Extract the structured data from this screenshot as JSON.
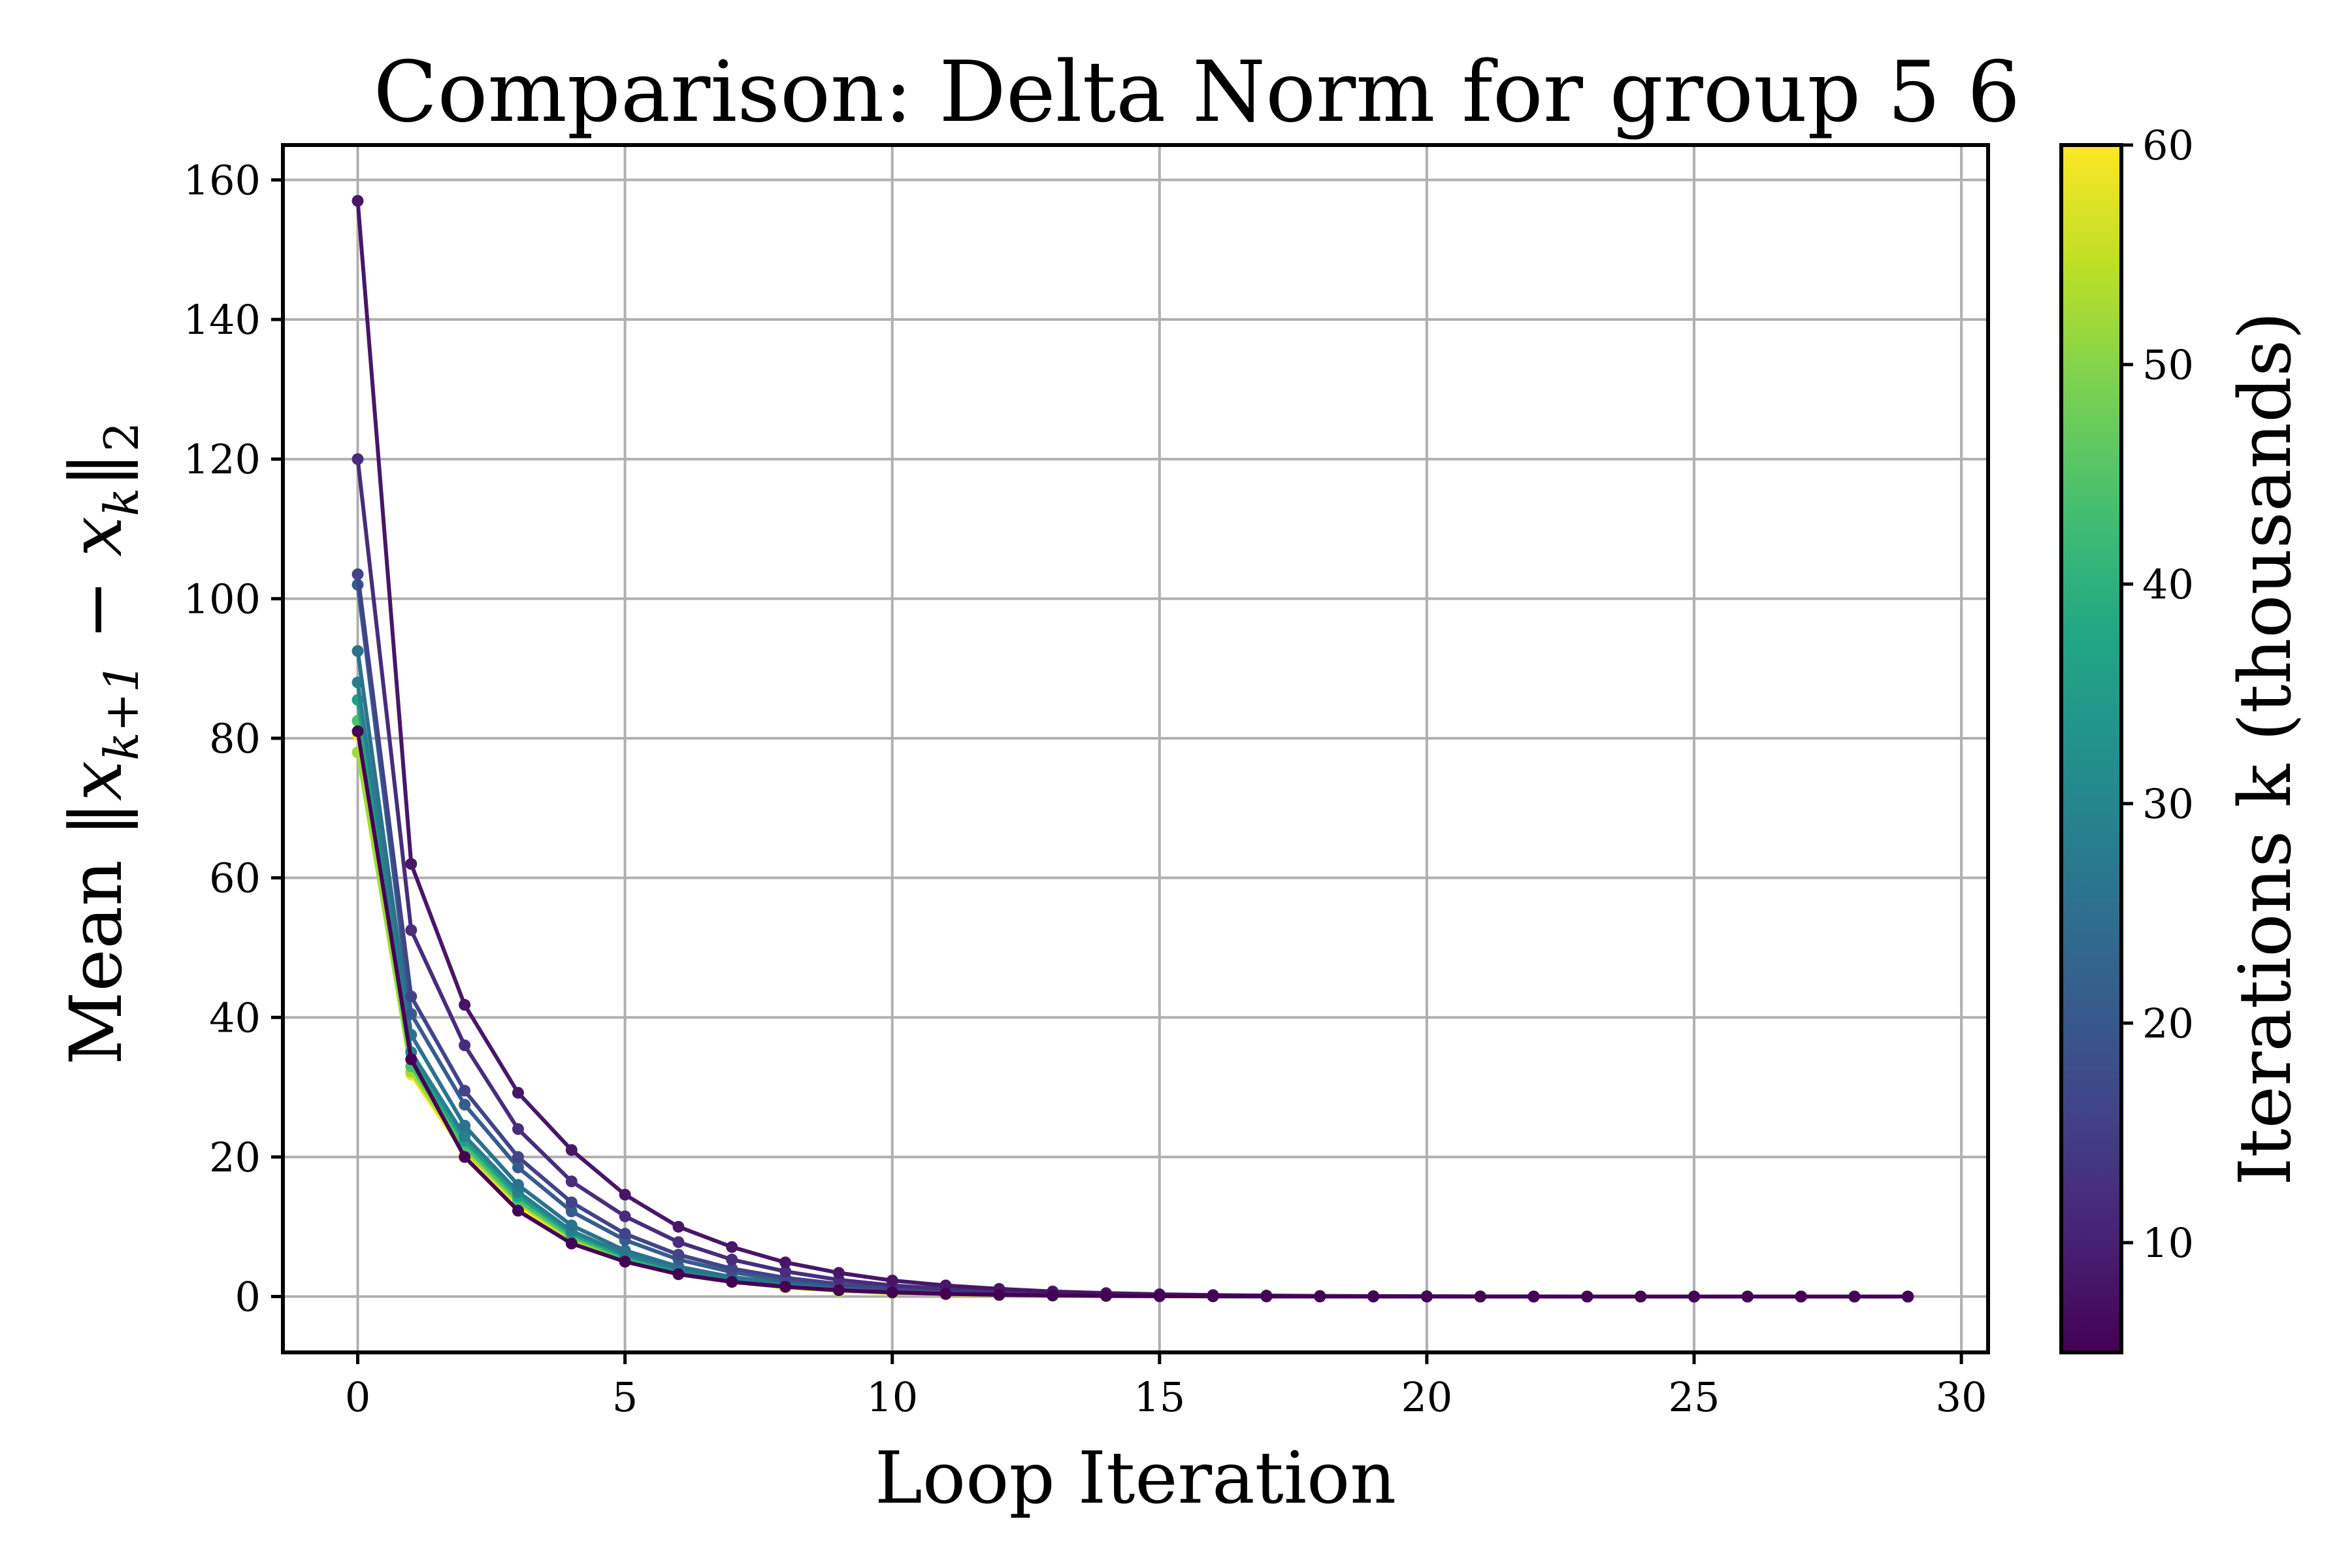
{
  "chart_data": {
    "type": "line",
    "title": "Comparison: Delta Norm for group 5 6",
    "xlabel": "Loop Iteration",
    "ylabel": "Mean ‖x_{k+1} − x_k‖₂",
    "ylabel_parts": {
      "lead": "Mean ‖",
      "x1": "x",
      "sub1": "k+1",
      "minus": " − ",
      "x2": "x",
      "sub2": "k",
      "close": "‖",
      "sub3": "2"
    },
    "xlim": [
      -1.4,
      30.5
    ],
    "ylim": [
      -8,
      165
    ],
    "xticks": [
      0,
      5,
      10,
      15,
      20,
      25,
      30
    ],
    "yticks": [
      0,
      20,
      40,
      60,
      80,
      100,
      120,
      140,
      160
    ],
    "grid": true,
    "colorbar": {
      "label": "Iterations k (thousands)",
      "colormap": "viridis",
      "range": [
        5,
        60
      ],
      "ticks": [
        10,
        20,
        30,
        40,
        50,
        60
      ]
    },
    "x": [
      0,
      1,
      2,
      3,
      4,
      5,
      6,
      7,
      8,
      9,
      10,
      11,
      12,
      13,
      14,
      15,
      16,
      17,
      18,
      19,
      20,
      21,
      22,
      23,
      24,
      25,
      26,
      27,
      28,
      29
    ],
    "series": [
      {
        "k": 60,
        "color": "#fde725",
        "values": [
          80.5,
          31.8,
          20.5,
          13.0,
          8.0,
          5.1,
          3.2,
          2.1,
          1.3,
          0.8,
          0.5,
          0.3,
          0.2,
          0.12,
          0.07,
          0.04,
          0.03,
          0.02,
          0.01,
          0.01,
          0,
          0,
          0,
          0,
          0,
          0,
          0,
          0,
          0,
          0
        ]
      },
      {
        "k": 55,
        "color": "#a0da39",
        "values": [
          78.0,
          32.2,
          21.0,
          13.4,
          8.3,
          5.3,
          3.3,
          2.2,
          1.4,
          0.9,
          0.55,
          0.35,
          0.22,
          0.14,
          0.08,
          0.05,
          0.03,
          0.02,
          0.01,
          0.01,
          0,
          0,
          0,
          0,
          0,
          0,
          0,
          0,
          0,
          0
        ]
      },
      {
        "k": 50,
        "color": "#4ac16d",
        "values": [
          82.5,
          33.0,
          21.6,
          13.8,
          8.6,
          5.5,
          3.5,
          2.3,
          1.5,
          0.95,
          0.6,
          0.38,
          0.24,
          0.15,
          0.09,
          0.06,
          0.04,
          0.02,
          0.01,
          0.01,
          0,
          0,
          0,
          0,
          0,
          0,
          0,
          0,
          0,
          0
        ]
      },
      {
        "k": 45,
        "color": "#1fa187",
        "values": [
          85.5,
          34.0,
          22.3,
          14.4,
          9.0,
          5.8,
          3.7,
          2.4,
          1.6,
          1.0,
          0.65,
          0.4,
          0.26,
          0.16,
          0.1,
          0.06,
          0.04,
          0.03,
          0.02,
          0.01,
          0,
          0,
          0,
          0,
          0,
          0,
          0,
          0,
          0,
          0
        ]
      },
      {
        "k": 40,
        "color": "#277f8e",
        "values": [
          88.0,
          35.0,
          23.0,
          15.0,
          9.4,
          6.1,
          3.9,
          2.5,
          1.7,
          1.05,
          0.7,
          0.43,
          0.28,
          0.18,
          0.11,
          0.07,
          0.05,
          0.03,
          0.02,
          0.01,
          0,
          0,
          0,
          0,
          0,
          0,
          0,
          0,
          0,
          0
        ]
      },
      {
        "k": 30,
        "color": "#2c728e",
        "values": [
          92.5,
          37.5,
          24.5,
          16.0,
          10.2,
          6.6,
          4.3,
          2.8,
          1.9,
          1.2,
          0.8,
          0.5,
          0.32,
          0.2,
          0.13,
          0.08,
          0.05,
          0.03,
          0.02,
          0.01,
          0,
          0,
          0,
          0,
          0,
          0,
          0,
          0,
          0,
          0
        ]
      },
      {
        "k": 20,
        "color": "#365c8d",
        "values": [
          102.0,
          40.5,
          27.5,
          18.5,
          12.2,
          8.1,
          5.3,
          3.5,
          2.3,
          1.5,
          1.0,
          0.65,
          0.42,
          0.27,
          0.17,
          0.11,
          0.07,
          0.05,
          0.03,
          0.02,
          0.01,
          0,
          0,
          0,
          0,
          0,
          0,
          0,
          0,
          0
        ]
      },
      {
        "k": 15,
        "color": "#414487",
        "values": [
          103.5,
          43.0,
          29.5,
          20.0,
          13.5,
          9.0,
          6.0,
          4.0,
          2.7,
          1.8,
          1.2,
          0.8,
          0.52,
          0.34,
          0.22,
          0.14,
          0.09,
          0.06,
          0.04,
          0.02,
          0.01,
          0,
          0,
          0,
          0,
          0,
          0,
          0,
          0,
          0
        ]
      },
      {
        "k": 10,
        "color": "#472d7b",
        "values": [
          120.0,
          52.5,
          36.0,
          24.0,
          16.5,
          11.5,
          7.8,
          5.3,
          3.6,
          2.4,
          1.6,
          1.1,
          0.72,
          0.47,
          0.31,
          0.2,
          0.13,
          0.08,
          0.05,
          0.03,
          0.02,
          0.01,
          0,
          0,
          0,
          0,
          0,
          0,
          0,
          0
        ]
      },
      {
        "k": 7,
        "color": "#481668",
        "values": [
          157.0,
          62.0,
          41.8,
          29.2,
          21.0,
          14.6,
          10.0,
          7.1,
          4.9,
          3.4,
          2.3,
          1.6,
          1.1,
          0.73,
          0.49,
          0.33,
          0.22,
          0.14,
          0.09,
          0.06,
          0.04,
          0.02,
          0.01,
          0,
          0,
          0,
          0,
          0,
          0,
          0
        ]
      },
      {
        "k": 5,
        "color": "#440154",
        "values": [
          81.0,
          34.0,
          20.0,
          12.3,
          7.6,
          5.0,
          3.2,
          2.1,
          1.4,
          0.9,
          0.6,
          0.38,
          0.25,
          0.16,
          0.1,
          0.06,
          0.04,
          0.03,
          0.02,
          0.01,
          0.01,
          0,
          0,
          0,
          0,
          0,
          0,
          0,
          0,
          0
        ]
      }
    ]
  }
}
